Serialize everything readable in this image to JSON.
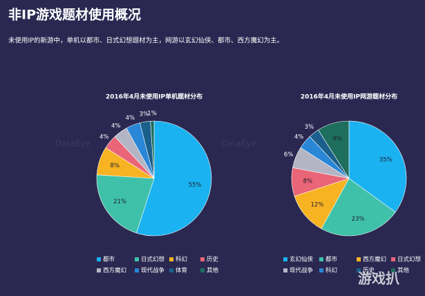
{
  "header": {
    "title": "非IP游戏题材使用概况",
    "subtitle": "未使用IP的新游中，单机以都市、日式幻想题材为主，网游以玄幻仙侠、都市、西方魔幻为主。"
  },
  "watermark": "DataEye",
  "logo": "游戏扒",
  "chart_data": [
    {
      "type": "pie",
      "title": "2016年4月未使用IP单机题材分布",
      "categories": [
        "都市",
        "日式幻想",
        "科幻",
        "历史",
        "西方魔幻",
        "现代战争",
        "体育",
        "其他"
      ],
      "values": [
        55,
        21,
        8,
        4,
        4,
        4,
        3,
        1
      ],
      "value_labels": [
        "55%",
        "21%",
        "8%",
        "4%",
        "4%",
        "4%",
        "3%",
        "1%"
      ],
      "colors": [
        "#1ab2f0",
        "#3fc1a9",
        "#f8b323",
        "#ea6577",
        "#b3b5c4",
        "#2a86d6",
        "#1b5f8c",
        "#1e6e5e"
      ]
    },
    {
      "type": "pie",
      "title": "2016年4月未使用IP网游题材分布",
      "categories": [
        "玄幻仙侠",
        "都市",
        "西方魔幻",
        "日式幻想",
        "现代战争",
        "科幻",
        "历史",
        "其他"
      ],
      "values": [
        35,
        23,
        12,
        8,
        6,
        4,
        3,
        9
      ],
      "value_labels": [
        "35%",
        "23%",
        "12%",
        "8%",
        "6%",
        "4%",
        "3%",
        "9%"
      ],
      "colors": [
        "#1ab2f0",
        "#3fc1a9",
        "#f8b323",
        "#ea6577",
        "#b3b5c4",
        "#2a86d6",
        "#1b5f8c",
        "#1e6e5e"
      ]
    }
  ]
}
